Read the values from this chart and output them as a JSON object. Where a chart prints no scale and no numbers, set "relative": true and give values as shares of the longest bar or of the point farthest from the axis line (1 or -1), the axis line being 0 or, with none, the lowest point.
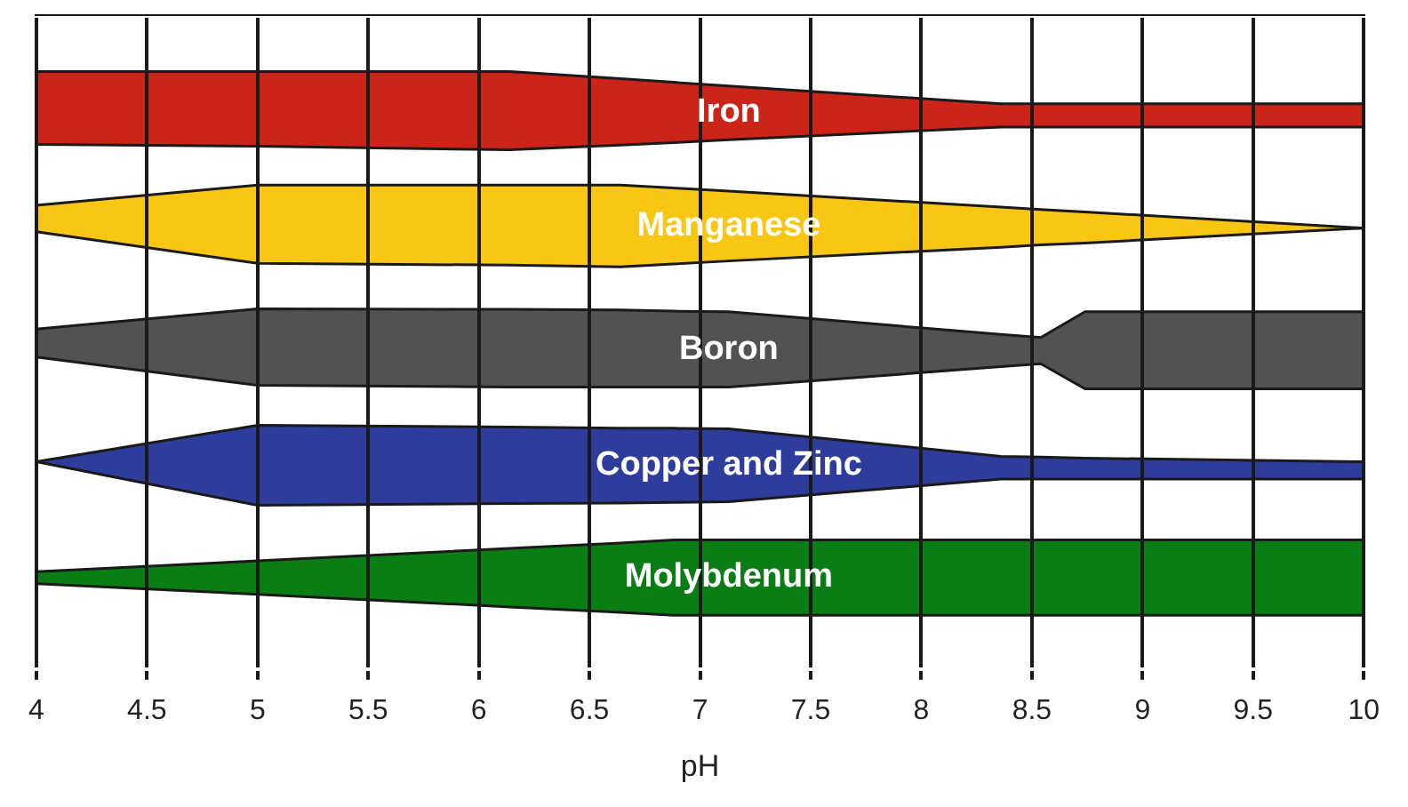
{
  "chart_data": {
    "type": "area",
    "stacked": true,
    "relative": true,
    "xlabel": "pH",
    "xlim": [
      4,
      10
    ],
    "xticks": [
      4,
      4.5,
      5,
      5.5,
      6,
      6.5,
      7,
      7.5,
      8,
      8.5,
      9,
      9.5,
      10
    ],
    "grid": "x",
    "legend": false,
    "marker": "none",
    "x": [
      4,
      5,
      6.14,
      6.64,
      6.88,
      7.13,
      8.36,
      8.54,
      8.74,
      10
    ],
    "series": [
      {
        "color": "#ffffff",
        "values": [
          0.143,
          0.125,
          0.104,
          0.095,
          0.09,
          0.09,
          0.09,
          0.09,
          0.09,
          0.09
        ]
      },
      {
        "name": "Molybdenum",
        "color": "#0a7d14",
        "values": [
          0.02,
          0.056,
          0.098,
          0.116,
          0.126,
          0.126,
          0.126,
          0.126,
          0.126,
          0.126
        ]
      },
      {
        "color": "#ffffff",
        "values": [
          0.184,
          0.093,
          0.075,
          0.067,
          0.063,
          0.064,
          0.102,
          0.102,
          0.102,
          0.102
        ]
      },
      {
        "name": "Copper and Zinc",
        "color": "#2e3d9c",
        "values": [
          0,
          0.134,
          0.128,
          0.125,
          0.124,
          0.122,
          0.038,
          0.037,
          0.035,
          0.029
        ]
      },
      {
        "color": "#ffffff",
        "values": [
          0.175,
          0.067,
          0.067,
          0.069,
          0.069,
          0.07,
          0.15,
          0.156,
          0.116,
          0.122
        ]
      },
      {
        "name": "Boron",
        "color": "#525252",
        "values": [
          0.047,
          0.128,
          0.13,
          0.129,
          0.127,
          0.126,
          0.054,
          0.044,
          0.129,
          0.129
        ]
      },
      {
        "color": "#ffffff",
        "values": [
          0.163,
          0.076,
          0.074,
          0.072,
          0.079,
          0.085,
          0.146,
          0.155,
          0.115,
          0.14
        ]
      },
      {
        "name": "Manganese",
        "color": "#f9c614",
        "values": [
          0.044,
          0.131,
          0.134,
          0.137,
          0.127,
          0.117,
          0.067,
          0.059,
          0.052,
          0
        ]
      },
      {
        "color": "#ffffff",
        "values": [
          0.102,
          0.065,
          0.059,
          0.067,
          0.076,
          0.086,
          0.134,
          0.138,
          0.142,
          0.169
        ]
      },
      {
        "name": "Iron",
        "color": "#cc2418",
        "values": [
          0.122,
          0.125,
          0.131,
          0.111,
          0.101,
          0.09,
          0.039,
          0.039,
          0.039,
          0.039
        ]
      }
    ]
  }
}
